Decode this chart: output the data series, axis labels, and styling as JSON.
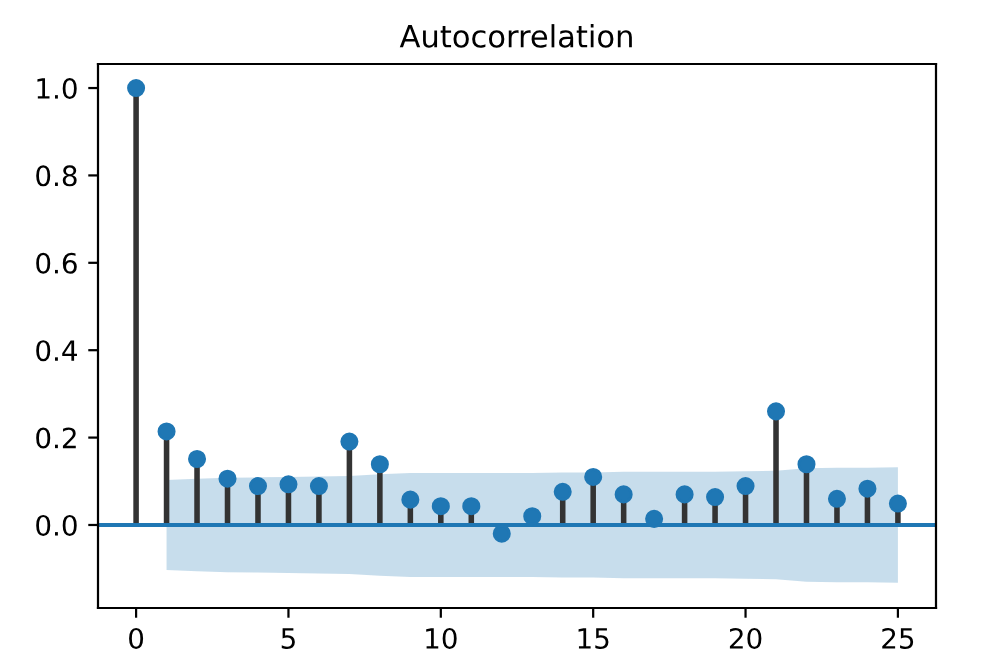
{
  "chart_data": {
    "type": "lollipop",
    "title": "Autocorrelation",
    "x": [
      0,
      1,
      2,
      3,
      4,
      5,
      6,
      7,
      8,
      9,
      10,
      11,
      12,
      13,
      14,
      15,
      16,
      17,
      18,
      19,
      20,
      21,
      22,
      23,
      24,
      25
    ],
    "series": [
      {
        "color": "#1f77b4",
        "values": [
          1.0,
          0.214,
          0.151,
          0.106,
          0.089,
          0.093,
          0.089,
          0.191,
          0.139,
          0.058,
          0.043,
          0.043,
          -0.02,
          0.02,
          0.076,
          0.11,
          0.07,
          0.014,
          0.07,
          0.064,
          0.089,
          0.26,
          0.139,
          0.06,
          0.083,
          0.049
        ],
        "upper": [
          null,
          0.103,
          0.106,
          0.108,
          0.109,
          0.11,
          0.111,
          0.112,
          0.116,
          0.119,
          0.119,
          0.119,
          0.119,
          0.119,
          0.12,
          0.12,
          0.122,
          0.122,
          0.122,
          0.122,
          0.123,
          0.124,
          0.13,
          0.131,
          0.131,
          0.132
        ],
        "lower": [
          null,
          -0.103,
          -0.106,
          -0.108,
          -0.109,
          -0.11,
          -0.111,
          -0.112,
          -0.116,
          -0.119,
          -0.119,
          -0.119,
          -0.119,
          -0.119,
          -0.12,
          -0.12,
          -0.122,
          -0.122,
          -0.122,
          -0.122,
          -0.123,
          -0.124,
          -0.13,
          -0.131,
          -0.131,
          -0.132
        ]
      }
    ],
    "ref_lines": [
      {
        "axis": "y",
        "value": 0,
        "color": "#1f77b4"
      }
    ],
    "xlim": [
      -1.25,
      26.25
    ],
    "xticks": [
      0,
      5,
      10,
      15,
      20,
      25
    ],
    "ylim": [
      -0.19,
      1.055
    ],
    "yticks": [
      {
        "value": 0,
        "label": "0.0"
      },
      0.2,
      0.4,
      0.6,
      0.8,
      {
        "value": 1,
        "label": "1.0"
      }
    ],
    "marker": "circle",
    "grid": false,
    "legend": false
  }
}
